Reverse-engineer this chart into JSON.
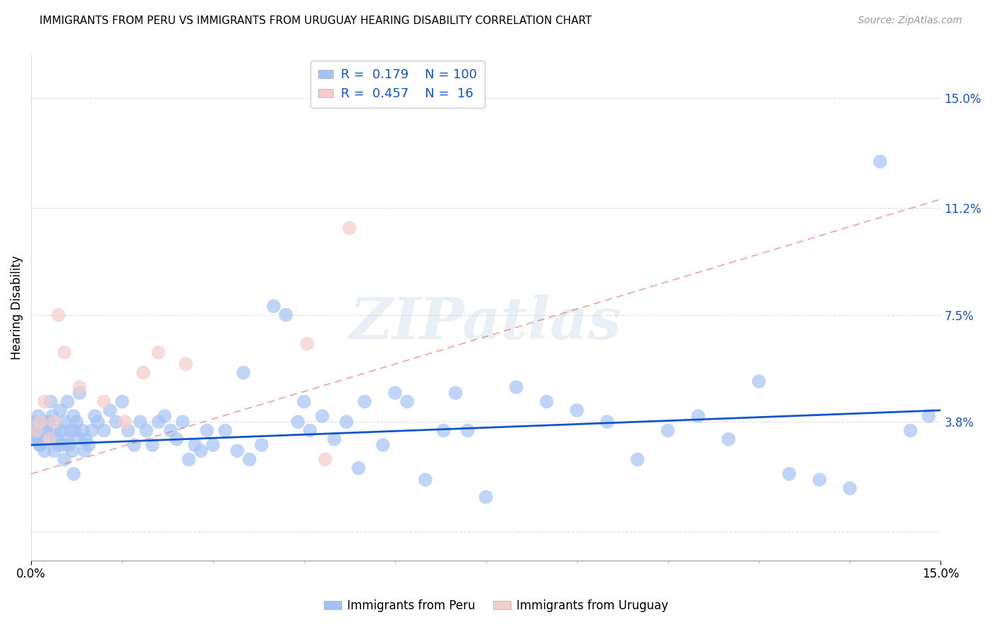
{
  "title": "IMMIGRANTS FROM PERU VS IMMIGRANTS FROM URUGUAY HEARING DISABILITY CORRELATION CHART",
  "source": "Source: ZipAtlas.com",
  "ylabel": "Hearing Disability",
  "xmin": 0.0,
  "xmax": 15.0,
  "ymin": -1.0,
  "ymax": 16.5,
  "yticks": [
    0.0,
    3.8,
    7.5,
    11.2,
    15.0
  ],
  "peru_color": "#a4c2f4",
  "uruguay_color": "#f4cccc",
  "peru_line_color": "#1155cc",
  "uruguay_line_color": "#e06666",
  "legend_peru_R": "0.179",
  "legend_peru_N": "100",
  "legend_uruguay_R": "0.457",
  "legend_uruguay_N": " 16",
  "watermark": "ZIPatlas",
  "peru_x": [
    0.05,
    0.08,
    0.1,
    0.12,
    0.15,
    0.18,
    0.2,
    0.22,
    0.25,
    0.28,
    0.3,
    0.35,
    0.38,
    0.4,
    0.42,
    0.45,
    0.48,
    0.5,
    0.52,
    0.55,
    0.58,
    0.6,
    0.62,
    0.65,
    0.68,
    0.7,
    0.72,
    0.75,
    0.78,
    0.8,
    0.85,
    0.9,
    0.95,
    1.0,
    1.05,
    1.1,
    1.2,
    1.3,
    1.4,
    1.5,
    1.6,
    1.7,
    1.8,
    1.9,
    2.0,
    2.1,
    2.2,
    2.3,
    2.4,
    2.5,
    2.6,
    2.7,
    2.8,
    2.9,
    3.0,
    3.2,
    3.4,
    3.5,
    3.6,
    3.8,
    4.0,
    4.2,
    4.4,
    4.5,
    4.6,
    4.8,
    5.0,
    5.2,
    5.4,
    5.5,
    5.8,
    6.0,
    6.2,
    6.5,
    6.8,
    7.0,
    7.2,
    7.5,
    8.0,
    8.5,
    9.0,
    9.5,
    10.0,
    10.5,
    11.0,
    11.5,
    12.0,
    12.5,
    13.0,
    13.5,
    14.0,
    14.5,
    14.8,
    0.06,
    0.09,
    0.14,
    0.32,
    0.55,
    0.7,
    0.88
  ],
  "peru_y": [
    3.5,
    3.8,
    3.2,
    4.0,
    3.0,
    3.5,
    3.8,
    2.8,
    3.5,
    3.2,
    3.8,
    4.0,
    2.8,
    3.5,
    3.2,
    3.0,
    4.2,
    3.5,
    3.0,
    3.8,
    3.2,
    4.5,
    3.0,
    3.5,
    2.8,
    4.0,
    3.5,
    3.8,
    3.2,
    4.8,
    3.5,
    3.2,
    3.0,
    3.5,
    4.0,
    3.8,
    3.5,
    4.2,
    3.8,
    4.5,
    3.5,
    3.0,
    3.8,
    3.5,
    3.0,
    3.8,
    4.0,
    3.5,
    3.2,
    3.8,
    2.5,
    3.0,
    2.8,
    3.5,
    3.0,
    3.5,
    2.8,
    5.5,
    2.5,
    3.0,
    7.8,
    7.5,
    3.8,
    4.5,
    3.5,
    4.0,
    3.2,
    3.8,
    2.2,
    4.5,
    3.0,
    4.8,
    4.5,
    1.8,
    3.5,
    4.8,
    3.5,
    1.2,
    5.0,
    4.5,
    4.2,
    3.8,
    2.5,
    3.5,
    4.0,
    3.2,
    5.2,
    2.0,
    1.8,
    1.5,
    12.8,
    3.5,
    4.0,
    3.5,
    3.2,
    3.0,
    4.5,
    2.5,
    2.0,
    2.8
  ],
  "uruguay_x": [
    0.08,
    0.15,
    0.22,
    0.3,
    0.38,
    0.45,
    0.55,
    0.8,
    1.2,
    1.55,
    1.85,
    2.1,
    2.55,
    4.55,
    4.85,
    5.25
  ],
  "uruguay_y": [
    3.5,
    3.8,
    4.5,
    3.2,
    3.8,
    7.5,
    6.2,
    5.0,
    4.5,
    3.8,
    5.5,
    6.2,
    5.8,
    6.5,
    2.5,
    10.5
  ],
  "peru_trend_x": [
    0.0,
    15.0
  ],
  "peru_trend_y": [
    3.0,
    4.2
  ],
  "uruguay_trend_x": [
    0.0,
    15.0
  ],
  "uruguay_trend_y": [
    2.0,
    11.5
  ],
  "grid_color": "#dddddd",
  "title_color": "#000000",
  "source_color": "#999999",
  "right_axis_color": "#1155cc",
  "marker_size": 200
}
